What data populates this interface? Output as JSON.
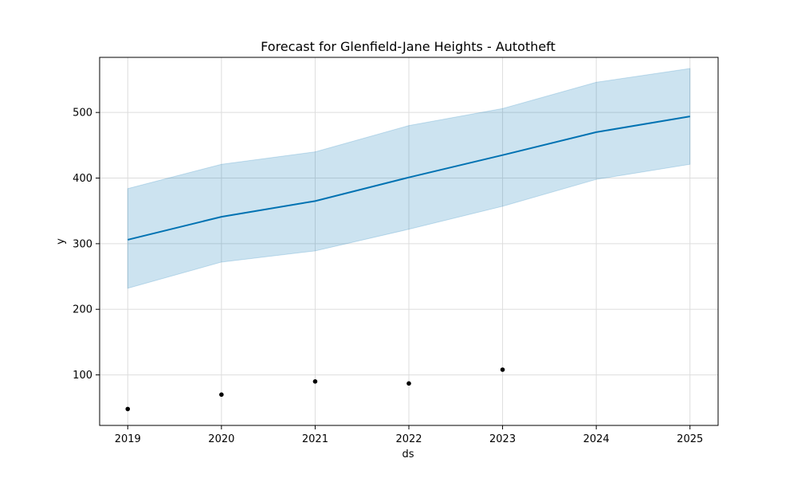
{
  "chart_data": {
    "type": "line",
    "title": "Forecast for Glenfield-Jane Heights - Autotheft",
    "xlabel": "ds",
    "ylabel": "y",
    "x_ticks": [
      "2019",
      "2020",
      "2021",
      "2022",
      "2023",
      "2024",
      "2025"
    ],
    "y_ticks": [
      100,
      200,
      300,
      400,
      500
    ],
    "xlim": [
      2018.7,
      2025.3
    ],
    "ylim": [
      23,
      584
    ],
    "grid": true,
    "observed": {
      "x": [
        2019,
        2020,
        2021,
        2022,
        2023
      ],
      "y": [
        48,
        70,
        90,
        87,
        108
      ]
    },
    "forecast": {
      "x": [
        2019,
        2020,
        2021,
        2022,
        2023,
        2024,
        2025
      ],
      "yhat": [
        306,
        341,
        365,
        401,
        435,
        470,
        494
      ],
      "yhat_upper": [
        384,
        421,
        440,
        480,
        506,
        546,
        567
      ],
      "yhat_lower": [
        232,
        272,
        289,
        322,
        357,
        398,
        421
      ]
    },
    "colors": {
      "forecast_line": "#0072B2",
      "interval_fill": "#0072B2",
      "points": "#000000",
      "grid": "#dddddd"
    }
  }
}
